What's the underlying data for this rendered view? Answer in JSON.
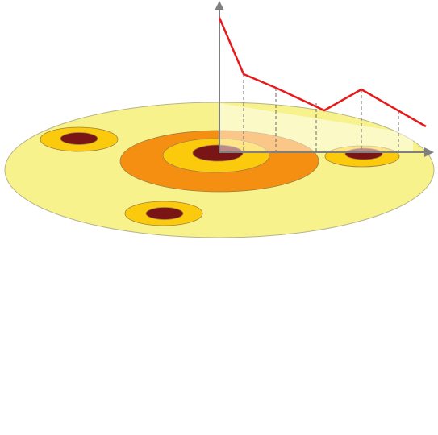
{
  "diagram": {
    "colors": {
      "background": "#ffffff",
      "disc_fill": "#f7f28c",
      "disc_stroke": "#b9b48a",
      "zone_outer": "#f58f12",
      "zone_mid": "#fcca0c",
      "core": "#7a1515",
      "ring_stroke": "#a08040",
      "axis": "#7f7f7f",
      "guide": "#6a6a6a",
      "line": "#e8191b",
      "panel": "#ffffff"
    },
    "hotspots": [
      {
        "id": "main-hotspot",
        "rings": [
          "zone_outer",
          "zone_mid",
          "core"
        ]
      },
      {
        "id": "upper-left-hotspot",
        "rings": [
          "zone_mid",
          "core"
        ]
      },
      {
        "id": "lower-hotspot",
        "rings": [
          "zone_mid",
          "core"
        ]
      },
      {
        "id": "right-hotspot",
        "rings": [
          "zone_mid",
          "core"
        ]
      }
    ],
    "line_series": {
      "points_count": 6,
      "has_dashed_drop_lines": true
    },
    "axes": {
      "x_arrow": true,
      "y_arrow": true
    }
  }
}
